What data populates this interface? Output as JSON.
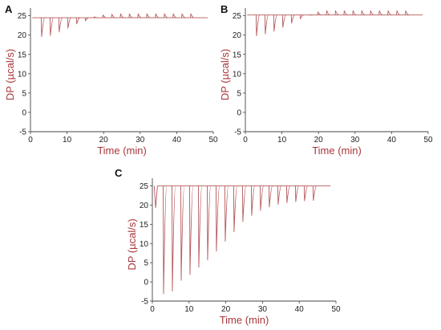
{
  "colors": {
    "trace": "#b5585a",
    "axis_title": "#a8373b",
    "axis": "#444444"
  },
  "chart_data": [
    {
      "panel": "A",
      "type": "line",
      "xlabel": "Time (min)",
      "ylabel": "DP (µcal/s)",
      "xlim": [
        0,
        50
      ],
      "ylim": [
        -5,
        27
      ],
      "xticks": [
        "0",
        "10",
        "20",
        "30",
        "40",
        "50"
      ],
      "yticks": [
        "-5",
        "0",
        "5",
        "10",
        "15",
        "20",
        "25"
      ],
      "baseline": 24.5,
      "injection_start_min": 3.0,
      "injection_interval_min": 2.4,
      "injection_peaks": [
        19.6,
        19.9,
        20.8,
        21.8,
        22.9,
        23.7,
        24.7,
        25.2,
        25.4,
        25.5,
        25.5,
        25.5,
        25.5,
        25.5,
        25.5,
        25.5,
        25.5,
        25.5
      ],
      "end_min": 48.5
    },
    {
      "panel": "B",
      "type": "line",
      "xlabel": "Time (min)",
      "ylabel": "DP (µcal/s)",
      "xlim": [
        0,
        50
      ],
      "ylim": [
        -5,
        27
      ],
      "xticks": [
        "0",
        "10",
        "20",
        "30",
        "40",
        "50"
      ],
      "yticks": [
        "-5",
        "0",
        "5",
        "10",
        "15",
        "20",
        "25"
      ],
      "baseline": 25.2,
      "injection_start_min": 3.0,
      "injection_interval_min": 2.4,
      "injection_peaks": [
        19.8,
        20.3,
        21.0,
        22.0,
        23.1,
        24.2,
        25.2,
        26.0,
        26.3,
        26.3,
        26.3,
        26.3,
        26.3,
        26.3,
        26.3,
        26.3,
        26.3,
        26.3
      ],
      "end_min": 48.5
    },
    {
      "panel": "C",
      "type": "line",
      "xlabel": "Time (min)",
      "ylabel": "DP (µcal/s)",
      "xlim": [
        0,
        50
      ],
      "ylim": [
        -5,
        27
      ],
      "xticks": [
        "0",
        "10",
        "20",
        "30",
        "40",
        "50"
      ],
      "yticks": [
        "-5",
        "0",
        "5",
        "10",
        "15",
        "20",
        "25"
      ],
      "baseline": 25.0,
      "pre_injection": {
        "x": 0.9,
        "value": 19.3
      },
      "injection_start_min": 3.0,
      "injection_interval_min": 2.4,
      "injection_peaks": [
        -3.1,
        -2.4,
        0.4,
        1.9,
        3.8,
        5.7,
        8.0,
        10.6,
        13.1,
        15.7,
        17.3,
        18.6,
        19.5,
        20.2,
        20.6,
        20.9,
        21.1,
        21.2
      ],
      "end_min": 48.5
    }
  ]
}
